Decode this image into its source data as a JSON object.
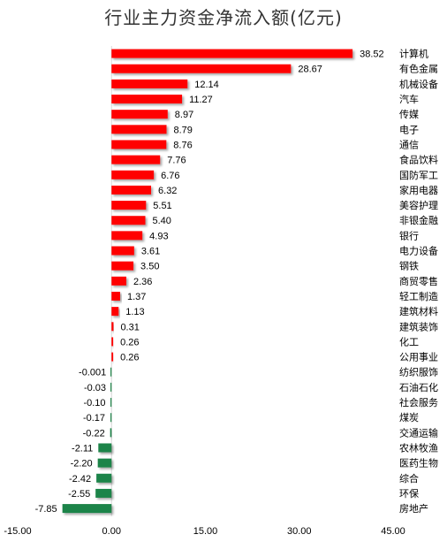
{
  "chart_data": {
    "type": "bar",
    "orientation": "horizontal",
    "title": "行业主力资金净流入额(亿元)",
    "categories": [
      "计算机",
      "有色金属",
      "机械设备",
      "汽车",
      "传媒",
      "电子",
      "通信",
      "食品饮料",
      "国防军工",
      "家用电器",
      "美容护理",
      "非银金融",
      "银行",
      "电力设备",
      "钢铁",
      "商贸零售",
      "轻工制造",
      "建筑材料",
      "建筑装饰",
      "化工",
      "公用事业",
      "纺织服饰",
      "石油石化",
      "社会服务",
      "煤炭",
      "交通运输",
      "农林牧渔",
      "医药生物",
      "综合",
      "环保",
      "房地产"
    ],
    "values": [
      38.52,
      28.67,
      12.14,
      11.27,
      8.97,
      8.79,
      8.76,
      7.76,
      6.76,
      6.32,
      5.51,
      5.4,
      4.93,
      3.61,
      3.5,
      2.36,
      1.37,
      1.13,
      0.31,
      0.26,
      0.26,
      -0.001,
      -0.03,
      -0.1,
      -0.17,
      -0.22,
      -2.11,
      -2.2,
      -2.42,
      -2.55,
      -7.85
    ],
    "value_labels": [
      "38.52",
      "28.67",
      "12.14",
      "11.27",
      "8.97",
      "8.79",
      "8.76",
      "7.76",
      "6.76",
      "6.32",
      "5.51",
      "5.40",
      "4.93",
      "3.61",
      "3.50",
      "2.36",
      "1.37",
      "1.13",
      "0.31",
      "0.26",
      "0.26",
      "-0.001",
      "-0.03",
      "-0.10",
      "-0.17",
      "-0.22",
      "-2.11",
      "-2.20",
      "-2.42",
      "-2.55",
      "-7.85"
    ],
    "xlim": [
      -15,
      45
    ],
    "x_ticks": [
      "-15.00",
      "0.00",
      "15.00",
      "30.00",
      "45.00"
    ],
    "x_tick_values": [
      -15,
      0,
      15,
      30,
      45
    ],
    "grid": false,
    "positive_color": "#ff0000",
    "negative_color": "#1e8449"
  }
}
